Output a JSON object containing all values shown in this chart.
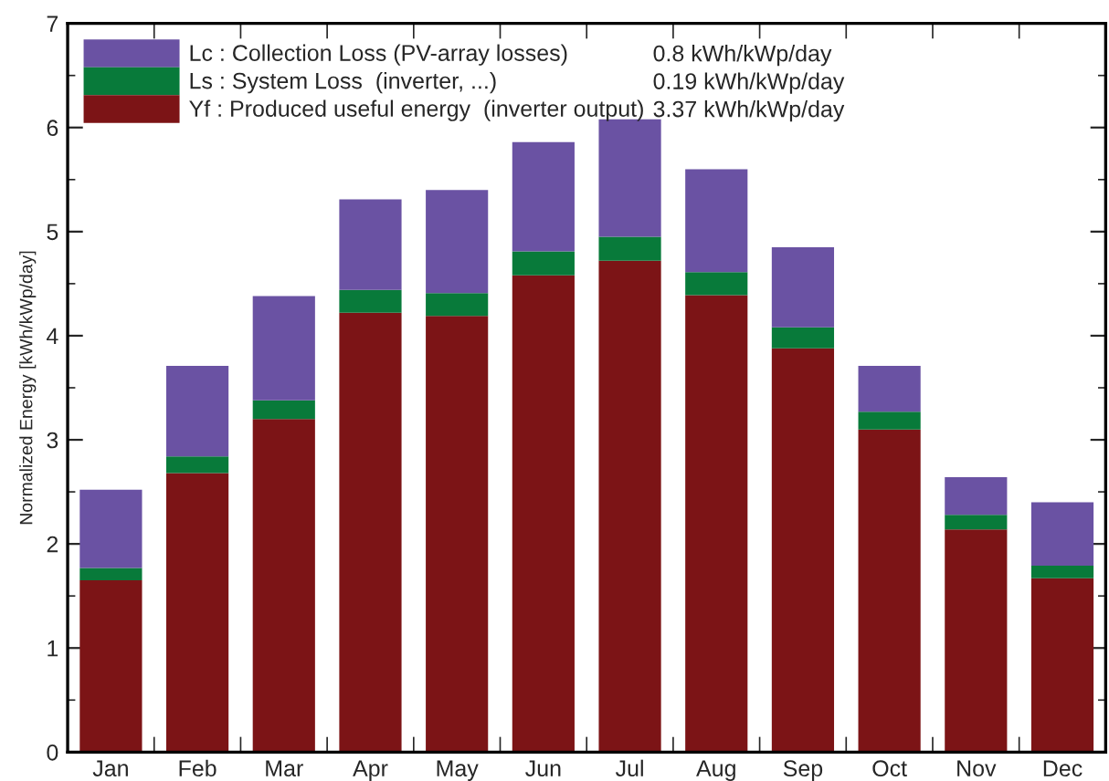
{
  "chart_data": {
    "type": "bar",
    "stacked": true,
    "ylabel": "Normalized Energy [kWh/kWp/day]",
    "categories": [
      "Jan",
      "Feb",
      "Mar",
      "Apr",
      "May",
      "Jun",
      "Jul",
      "Aug",
      "Sep",
      "Oct",
      "Nov",
      "Dec"
    ],
    "series": [
      {
        "name": "Yf : Produced useful energy  (inverter output)",
        "color": "#7c1416",
        "values": [
          1.65,
          2.68,
          3.2,
          4.22,
          4.19,
          4.58,
          4.72,
          4.39,
          3.88,
          3.1,
          2.14,
          1.67
        ]
      },
      {
        "name": "Ls : System Loss  (inverter, ...)",
        "color": "#087a3a",
        "values": [
          0.12,
          0.16,
          0.18,
          0.22,
          0.22,
          0.23,
          0.23,
          0.22,
          0.2,
          0.17,
          0.14,
          0.12
        ]
      },
      {
        "name": "Lc : Collection Loss (PV-array losses)",
        "color": "#6a52a3",
        "values": [
          0.75,
          0.87,
          1.0,
          0.87,
          0.99,
          1.05,
          1.13,
          0.99,
          0.77,
          0.44,
          0.36,
          0.61
        ]
      }
    ],
    "annotations": [
      "3.37 kWh/kWp/day",
      "0.19 kWh/kWp/day",
      "0.8 kWh/kWp/day"
    ],
    "ylim": [
      0,
      7
    ],
    "yticks": [
      0,
      1,
      2,
      3,
      4,
      5,
      6,
      7
    ],
    "grid": false,
    "legend": "top left"
  }
}
